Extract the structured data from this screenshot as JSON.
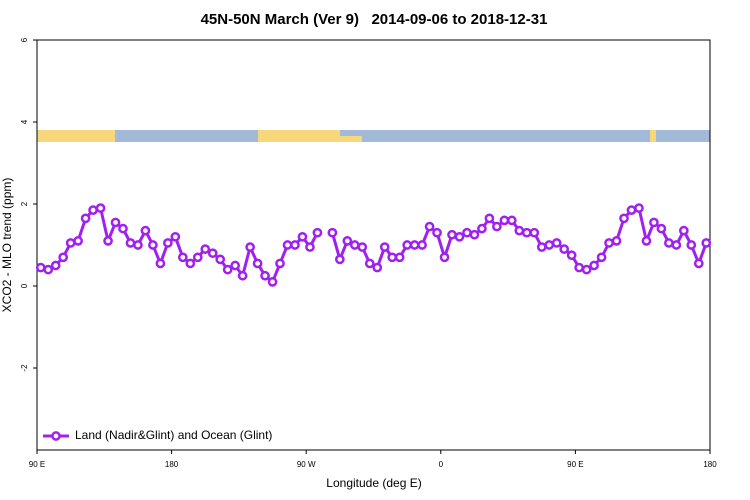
{
  "chart_data": {
    "type": "line",
    "title": "45N-50N March (Ver 9)   2014-09-06 to 2018-12-31",
    "x_label": "Longitude (deg E)",
    "y_label": "XCO2 - MLO trend (ppm)",
    "xlim": [
      90,
      540
    ],
    "ylim": [
      -4,
      6
    ],
    "xticks": [
      {
        "value": 90,
        "label": "90 E"
      },
      180,
      {
        "value": 270,
        "label": "90 W"
      },
      {
        "value": 360,
        "label": "0"
      },
      {
        "value": 450,
        "label": "90 E"
      },
      {
        "value": 540,
        "label": "180"
      }
    ],
    "yticks": [
      -2,
      0,
      2,
      4,
      6
    ],
    "grid": false,
    "legend": "bottom-left",
    "x": [
      92.5,
      97.5,
      102.5,
      107.5,
      112.5,
      117.5,
      122.5,
      127.5,
      132.5,
      137.5,
      142.5,
      147.5,
      152.5,
      157.5,
      162.5,
      167.5,
      172.5,
      177.5,
      182.5,
      187.5,
      192.5,
      197.5,
      202.5,
      207.5,
      212.5,
      217.5,
      222.5,
      227.5,
      232.5,
      237.5,
      242.5,
      247.5,
      252.5,
      257.5,
      262.5,
      267.5,
      272.5,
      277.5,
      282.5,
      287.5,
      292.5,
      297.5,
      302.5,
      307.5,
      312.5,
      317.5,
      322.5,
      327.5,
      332.5,
      337.5,
      342.5,
      347.5,
      352.5,
      357.5,
      362.5,
      367.5,
      372.5,
      377.5,
      382.5,
      387.5,
      392.5,
      397.5,
      402.5,
      407.5,
      412.5,
      417.5,
      422.5,
      427.5,
      432.5,
      437.5,
      442.5,
      447.5,
      452.5,
      457.5,
      462.5,
      467.5,
      472.5,
      477.5,
      482.5,
      487.5,
      492.5,
      497.5,
      502.5,
      507.5,
      512.5,
      517.5,
      522.5,
      527.5,
      532.5,
      537.5
    ],
    "series": [
      {
        "name": "Land (Nadir&Glint) and Ocean (Glint)",
        "color": "#a020f0",
        "values": [
          0.45,
          0.4,
          0.5,
          0.7,
          1.05,
          1.1,
          1.65,
          1.85,
          1.9,
          1.1,
          1.55,
          1.4,
          1.05,
          1.0,
          1.35,
          1.0,
          0.55,
          1.05,
          1.2,
          0.7,
          0.55,
          0.7,
          0.9,
          0.8,
          0.65,
          0.4,
          0.5,
          0.25,
          0.95,
          0.55,
          0.25,
          0.1,
          0.55,
          1.0,
          1.0,
          1.2,
          0.95,
          1.3,
          null,
          1.3,
          0.65,
          1.1,
          1.0,
          0.95,
          0.55,
          0.45,
          0.95,
          0.7,
          0.7,
          1.0,
          1.0,
          1.0,
          1.45,
          1.3,
          0.7,
          1.25,
          1.2,
          1.3,
          1.25,
          1.4,
          1.65,
          1.45,
          1.6,
          1.6,
          1.35,
          1.3,
          1.3,
          0.95,
          1.0,
          1.05,
          0.9,
          0.75,
          0.45,
          0.4,
          0.5,
          0.7,
          1.05,
          1.1,
          1.65,
          1.85,
          1.9,
          1.1,
          1.55,
          1.4,
          1.05,
          1.0,
          1.35,
          1.0,
          0.55,
          1.05
        ]
      }
    ]
  }
}
